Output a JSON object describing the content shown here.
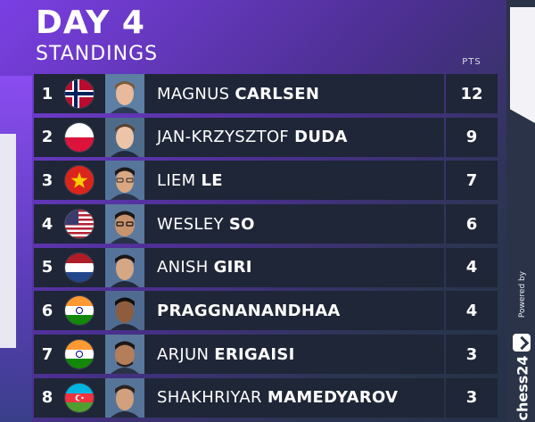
{
  "header": {
    "title": "DAY 4",
    "subtitle": "STANDINGS",
    "pts_label": "PTS"
  },
  "standings": [
    {
      "rank": "1",
      "first": "MAGNUS ",
      "last": "CARLSEN",
      "pts": "12",
      "flag": "norway-flag-icon"
    },
    {
      "rank": "2",
      "first": "JAN-KRZYSZTOF ",
      "last": "DUDA",
      "pts": "9",
      "flag": "poland-flag-icon"
    },
    {
      "rank": "3",
      "first": "LIEM ",
      "last": "LE",
      "pts": "7",
      "flag": "vietnam-flag-icon"
    },
    {
      "rank": "4",
      "first": "WESLEY ",
      "last": "SO",
      "pts": "6",
      "flag": "usa-flag-icon"
    },
    {
      "rank": "5",
      "first": "ANISH ",
      "last": "GIRI",
      "pts": "4",
      "flag": "netherlands-flag-icon"
    },
    {
      "rank": "6",
      "first": "",
      "last": "PRAGGNANANDHAA",
      "pts": "4",
      "flag": "india-flag-icon"
    },
    {
      "rank": "7",
      "first": "ARJUN ",
      "last": "ERIGAISI",
      "pts": "3",
      "flag": "india-flag-icon"
    },
    {
      "rank": "8",
      "first": "SHAKHRIYAR ",
      "last": "MAMEDYAROV",
      "pts": "3",
      "flag": "azerbaijan-flag-icon"
    }
  ],
  "sidebar": {
    "powered_by": "Powered by",
    "brand": "chess24",
    "brand_icon": "chess24-logo-icon"
  },
  "colors": {
    "accent": "#7b3fe4",
    "row_bg": "#1e2637",
    "text": "#ffffff"
  }
}
